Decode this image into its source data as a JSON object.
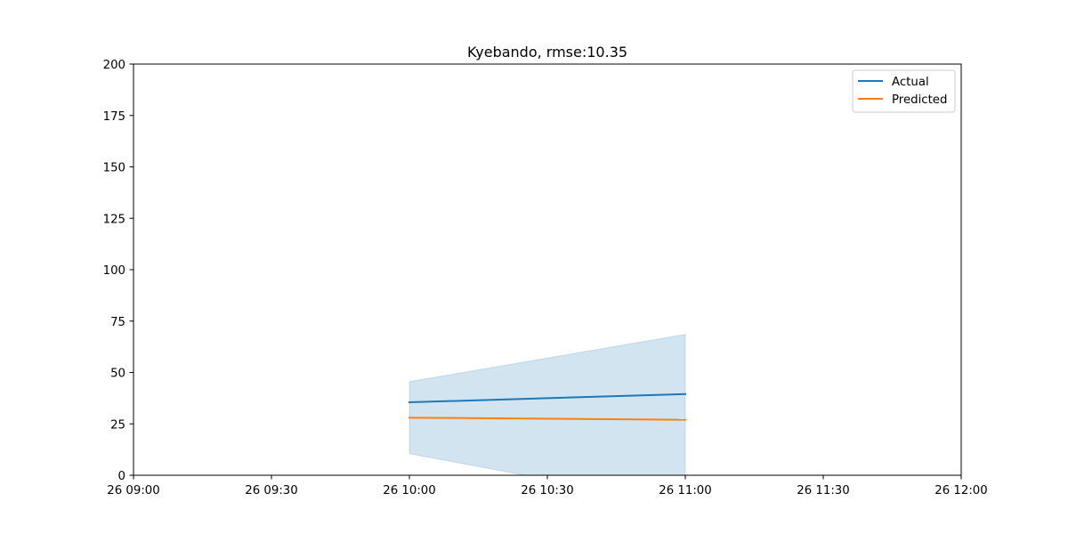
{
  "chart_data": {
    "type": "line",
    "title": "Kyebando, rmse:10.35",
    "xlabel": "",
    "ylabel": "",
    "x_ticks": [
      "26 09:00",
      "26 09:30",
      "26 10:00",
      "26 10:30",
      "26 11:00",
      "26 11:30",
      "26 12:00"
    ],
    "y_ticks": [
      "0",
      "25",
      "50",
      "75",
      "100",
      "125",
      "150",
      "175",
      "200"
    ],
    "xlim": [
      "26 09:00",
      "26 12:00"
    ],
    "ylim": [
      0,
      200
    ],
    "x": [
      "26 10:00",
      "26 11:00"
    ],
    "series": [
      {
        "name": "Actual",
        "values": [
          35.5,
          39.5
        ],
        "color": "#1f77b4"
      },
      {
        "name": "Predicted",
        "values": [
          28,
          27
        ],
        "color": "#ff7f0e"
      }
    ],
    "confidence_band": {
      "lower": [
        10.5,
        -14.5
      ],
      "upper": [
        45.5,
        68.5
      ],
      "color": "#1f77b4",
      "opacity": 0.2
    },
    "legend": {
      "position": "top-right"
    },
    "grid": false
  }
}
